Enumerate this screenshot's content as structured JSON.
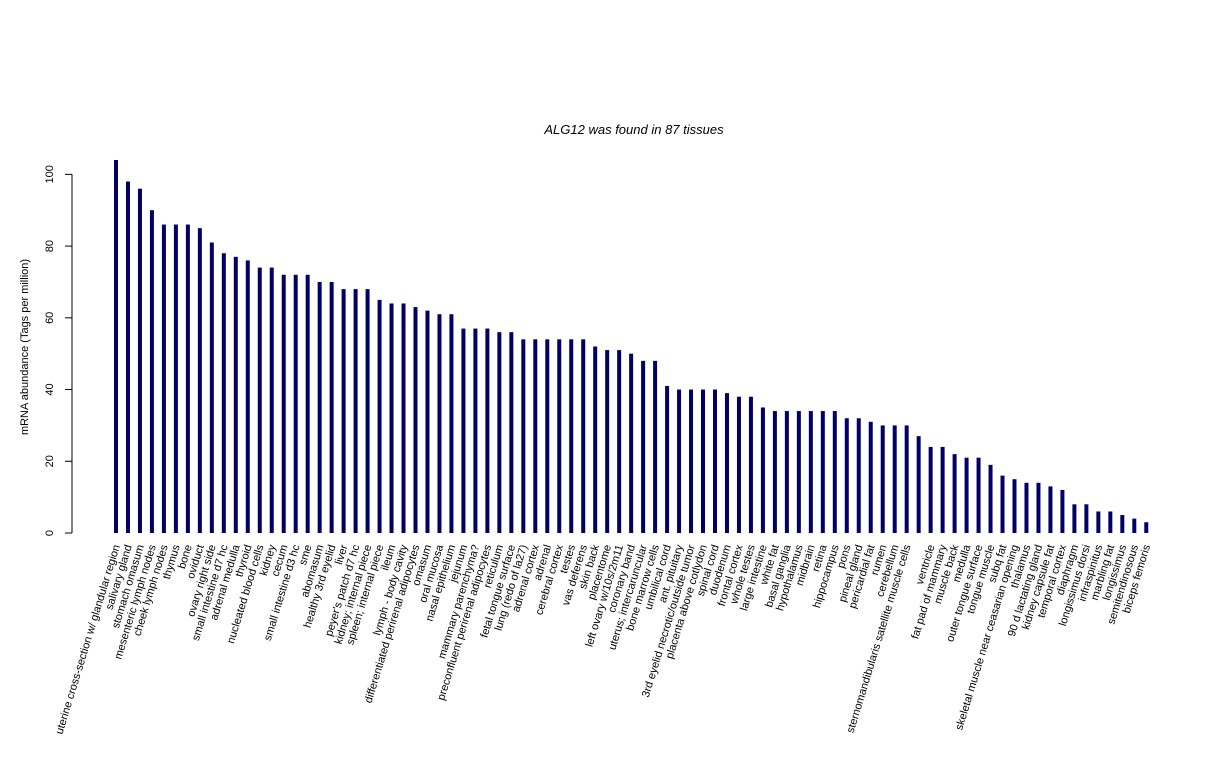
{
  "chart_data": {
    "type": "bar",
    "title": "ALG12  was found in  87  tissues",
    "ylabel": "mRNA abundance (Tags per million)",
    "color": "#000066",
    "categories": [
      "uterine cross-section w/ glandular region",
      "salivary gland",
      "stomach omasum",
      "mesenteric lymph nodes",
      "cheek lymph nodes",
      "thymus",
      "bone",
      "oviduct",
      "ovary right side",
      "small intestine d7 hc",
      "adrenal medulla",
      "thyroid",
      "nucleated blood cells",
      "kidney",
      "cecum",
      "small intestine d3 hc",
      "sme",
      "abomasum",
      "healthy 3rd eyelid",
      "liver",
      "peyer's patch d7 hc",
      "kidney; internal piece",
      "spleen; internal piece",
      "ileum",
      "lymph - body cavity",
      "differentiated perirenal adipocytes",
      "omasum",
      "oral mucosa",
      "nasal epithelium",
      "jejunum",
      "mammary parenchyma?",
      "preconfluent perirenal adipocytes",
      "reticulum",
      "fetal tongue surface",
      "lung (redo of la27)",
      "adrenal cortex",
      "adrenal",
      "cerebral cortex",
      "testes",
      "vas deferens",
      "skin back",
      "placentome",
      "left ovary w/10s/2m11",
      "coronary band",
      "uterus; intercaruncular",
      "bone marrow cells",
      "umbilical cord",
      "ant. pituitary",
      "3rd eyelid necrotic/outside tumor",
      "placenta above cotlydon",
      "spinal cord",
      "duodenum",
      "frontal cortex",
      "whole testes",
      "large intestine",
      "white fat",
      "basal ganglia",
      "hypothalamus",
      "midbrain",
      "retina",
      "hippocampus",
      "pons",
      "pineal gland",
      "pericardial fat",
      "rumen",
      "cerebellum",
      "sternomandibularis satellite muscle cells",
      null,
      "ventricle",
      "fat pad of mammary",
      "muscle back",
      "medulla",
      "outer tongue surface",
      "tongue muscle",
      "subq fat",
      "skeletal muscle near ceasarian opening",
      "thalamus",
      "90 d lactating gland",
      "kidney capsule fat",
      "temporal cortex",
      "diaphragm",
      "longissimus dorsi",
      "infraspinitus",
      "marbling fat",
      "longissimus",
      "semitendinosous",
      "biceps femoris"
    ],
    "values": [
      104,
      98,
      96,
      90,
      86,
      86,
      86,
      85,
      81,
      78,
      77,
      76,
      74,
      74,
      72,
      72,
      72,
      70,
      70,
      68,
      68,
      68,
      65,
      64,
      64,
      63,
      62,
      61,
      61,
      57,
      57,
      57,
      56,
      56,
      54,
      54,
      54,
      54,
      54,
      54,
      52,
      51,
      51,
      50,
      48,
      48,
      41,
      40,
      40,
      40,
      40,
      39,
      38,
      38,
      35,
      34,
      34,
      34,
      34,
      34,
      34,
      32,
      32,
      31,
      30,
      30,
      30,
      27,
      24,
      24,
      22,
      21,
      21,
      19,
      16,
      15,
      14,
      14,
      13,
      12,
      8,
      8,
      6,
      6,
      5,
      4,
      3
    ],
    "ylim": [
      0,
      104
    ],
    "yticks": [
      0,
      20,
      40,
      60,
      80,
      100
    ]
  }
}
